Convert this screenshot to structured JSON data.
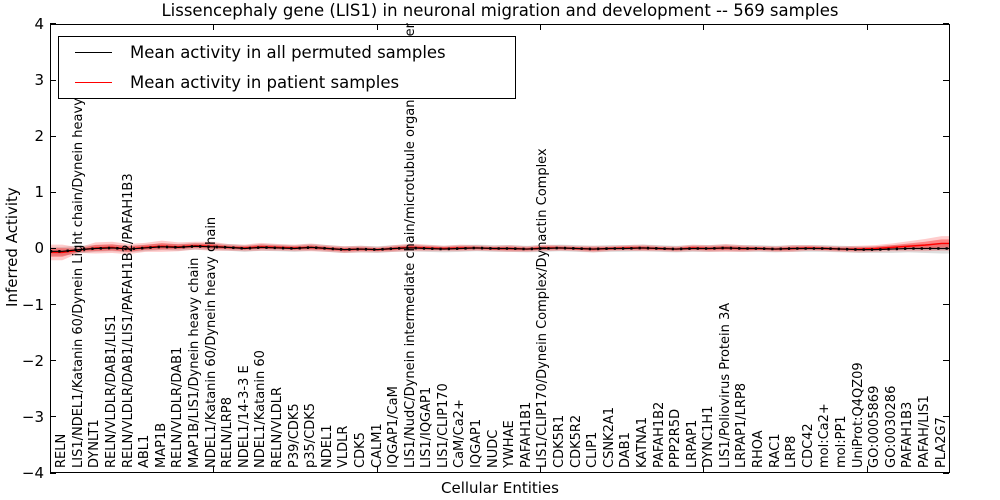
{
  "title": "Lissencephaly gene (LIS1) in neuronal migration and development -- 569 samples",
  "axes": {
    "xlabel": "Cellular Entities",
    "ylabel": "Inferred Activity",
    "yticks": [
      "4",
      "3",
      "2",
      "1",
      "0",
      "−1",
      "−2",
      "−3",
      "−4"
    ],
    "ylim": [
      -4,
      4
    ]
  },
  "legend": {
    "items": [
      {
        "label": "Mean activity in all permuted samples",
        "color": "#000000"
      },
      {
        "label": "Mean activity in patient samples",
        "color": "#ff0000"
      }
    ]
  },
  "colors": {
    "permuted_line": "#000000",
    "patient_line": "#ff0000",
    "permuted_band": "rgba(0,0,0,0.13)",
    "patient_band": "rgba(255,0,0,0.20)",
    "patient_band_core": "rgba(255,0,0,0.35)"
  },
  "chart_data": {
    "type": "line",
    "title": "Lissencephaly gene (LIS1) in neuronal migration and development -- 569 samples",
    "xlabel": "Cellular Entities",
    "ylabel": "Inferred Activity",
    "ylim": [
      -4,
      4
    ],
    "grid": false,
    "legend_position": "upper left",
    "categories": [
      "RELN",
      "LIS1/NDEL1/Katanin 60/Dynein Light chain/Dynein heavy chain",
      "DYNLT1",
      "RELN/VLDLR/DAB1/LIS1",
      "RELN/VLDLR/DAB1/LIS1/PAFAH1B2/PAFAH1B3",
      "ABL1",
      "MAP1B",
      "RELN/VLDLR/DAB1",
      "MAP1B/LIS1/Dynein heavy chain",
      "NDEL1/Katanin 60/Dynein heavy chain",
      "RELN/LRP8",
      "NDEL1/14-3-3 E",
      "NDEL1/Katanin 60",
      "RELN/VLDLR",
      "P39/CDK5",
      "p35/CDK5",
      "NDEL1",
      "VLDLR",
      "CDK5",
      "CALM1",
      "IQGAP1/CaM",
      "LIS1/NudC/Dynein intermediate chain/microtubule organizing center",
      "LIS1/IQGAP1",
      "LIS1/CLIP170",
      "CaM/Ca2+",
      "IQGAP1",
      "NUDC",
      "YWHAE",
      "PAFAH1B1",
      "LIS1/CLIP170/Dynein Complex/Dynactin Complex",
      "CDK5R1",
      "CDK5R2",
      "CLIP1",
      "CSNK2A1",
      "DAB1",
      "KATNA1",
      "PAFAH1B2",
      "PPP2R5D",
      "LRPAP1",
      "DYNC1H1",
      "LIS1/Poliovirus Protein 3A",
      "LRPAP1/LRP8",
      "RHOA",
      "RAC1",
      "LRP8",
      "CDC42",
      "mol:Ca2+",
      "mol:PP1",
      "UniProt:Q4QZ09",
      "GO:0005869",
      "GO:0030286",
      "PAFAH1B3",
      "PAFAH/LIS1",
      "PLA2G7"
    ],
    "series": [
      {
        "name": "Mean activity in all permuted samples",
        "color": "#000000",
        "values": [
          -0.05,
          -0.02,
          0.0,
          0.01,
          -0.01,
          0.01,
          0.03,
          0.02,
          0.04,
          0.03,
          0.02,
          0.0,
          0.02,
          0.01,
          0.0,
          0.02,
          0.0,
          -0.02,
          -0.01,
          -0.02,
          0.0,
          0.01,
          0.0,
          -0.01,
          0.0,
          0.01,
          0.0,
          0.0,
          -0.01,
          0.0,
          0.01,
          0.0,
          -0.01,
          0.0,
          0.0,
          0.01,
          0.0,
          -0.01,
          0.0,
          0.0,
          0.01,
          0.0,
          0.0,
          -0.01,
          0.0,
          0.0,
          0.0,
          -0.01,
          -0.02,
          -0.02,
          -0.01,
          0.0,
          0.0,
          0.0
        ],
        "band_halfwidth": [
          0.08,
          0.07,
          0.06,
          0.06,
          0.06,
          0.06,
          0.06,
          0.06,
          0.06,
          0.06,
          0.06,
          0.06,
          0.06,
          0.06,
          0.06,
          0.06,
          0.06,
          0.06,
          0.06,
          0.06,
          0.06,
          0.06,
          0.06,
          0.06,
          0.06,
          0.06,
          0.06,
          0.06,
          0.06,
          0.06,
          0.06,
          0.06,
          0.06,
          0.06,
          0.06,
          0.06,
          0.06,
          0.06,
          0.06,
          0.06,
          0.06,
          0.06,
          0.06,
          0.06,
          0.06,
          0.06,
          0.06,
          0.06,
          0.06,
          0.06,
          0.07,
          0.07,
          0.08,
          0.09
        ]
      },
      {
        "name": "Mean activity in patient samples",
        "color": "#ff0000",
        "values": [
          -0.07,
          -0.03,
          0.01,
          0.02,
          -0.01,
          0.02,
          0.04,
          0.03,
          0.05,
          0.04,
          0.02,
          0.01,
          0.03,
          0.02,
          0.01,
          0.02,
          0.0,
          -0.02,
          -0.01,
          -0.02,
          0.0,
          0.02,
          0.01,
          0.0,
          0.01,
          0.01,
          0.0,
          0.0,
          -0.01,
          0.01,
          0.01,
          0.0,
          -0.01,
          0.0,
          0.01,
          0.01,
          0.0,
          -0.01,
          0.01,
          0.0,
          0.01,
          0.0,
          0.0,
          -0.01,
          0.0,
          0.01,
          0.0,
          -0.01,
          -0.01,
          0.0,
          0.02,
          0.04,
          0.06,
          0.09
        ],
        "band_halfwidth": [
          0.14,
          0.05,
          0.1,
          0.1,
          0.09,
          0.08,
          0.1,
          0.08,
          0.07,
          0.08,
          0.06,
          0.06,
          0.07,
          0.06,
          0.06,
          0.07,
          0.06,
          0.06,
          0.06,
          0.05,
          0.06,
          0.07,
          0.06,
          0.05,
          0.06,
          0.05,
          0.05,
          0.06,
          0.05,
          0.06,
          0.05,
          0.05,
          0.06,
          0.05,
          0.05,
          0.06,
          0.05,
          0.05,
          0.06,
          0.06,
          0.07,
          0.06,
          0.05,
          0.05,
          0.06,
          0.05,
          0.05,
          0.05,
          0.06,
          0.06,
          0.07,
          0.09,
          0.11,
          0.13
        ]
      }
    ]
  }
}
